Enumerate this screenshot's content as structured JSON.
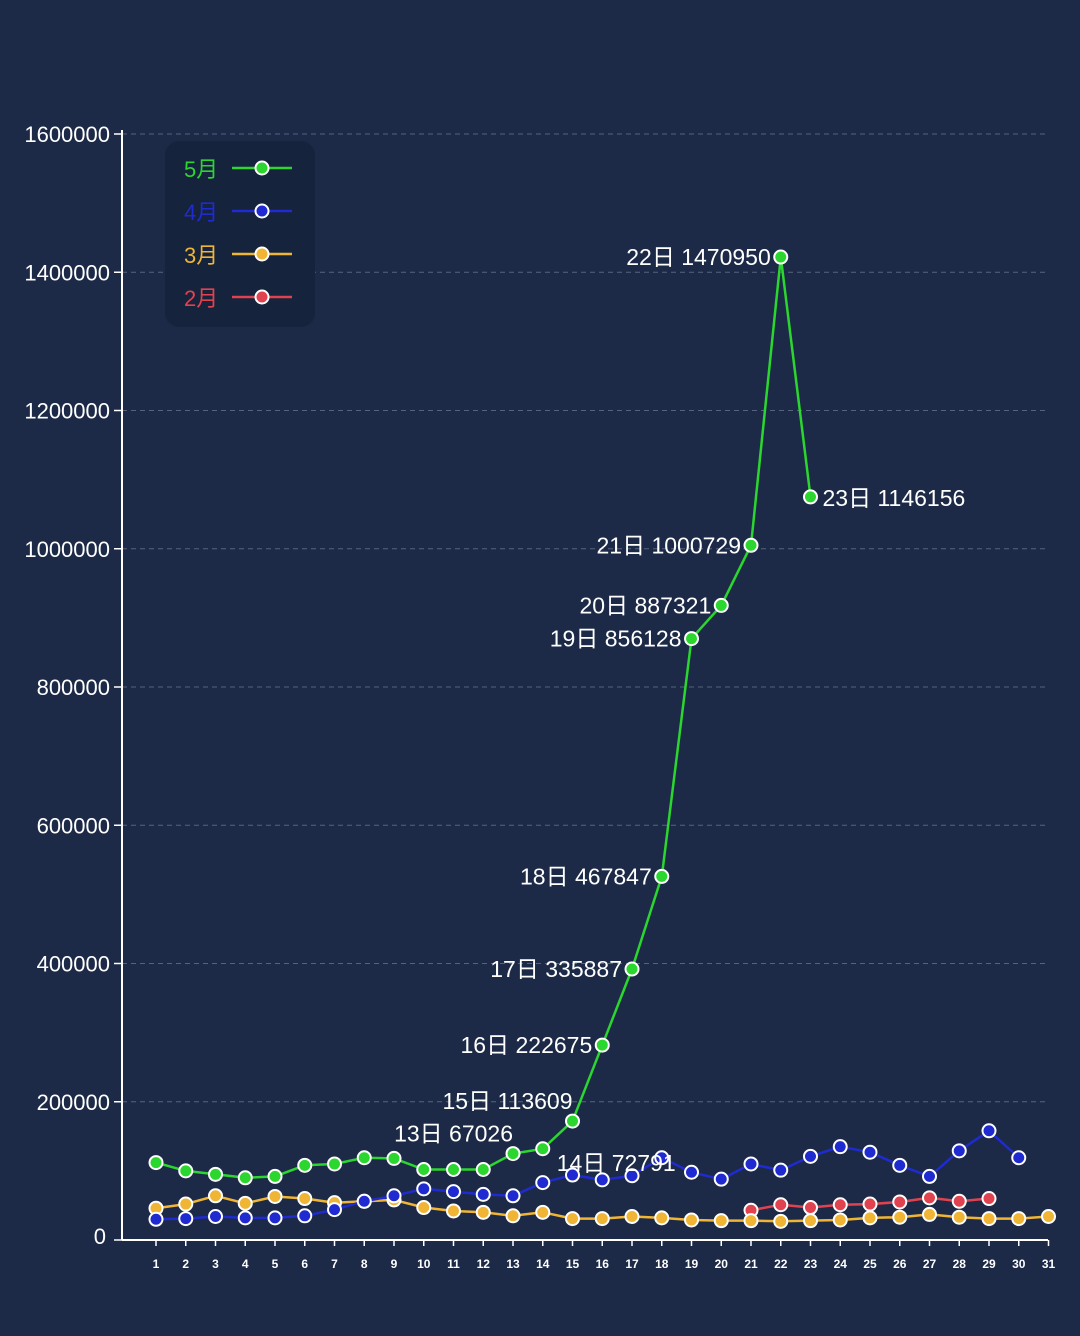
{
  "chart_data": {
    "type": "line",
    "title": "",
    "xlabel": "",
    "ylabel": "",
    "ylim": [
      0,
      1600000
    ],
    "yticks": [
      "0",
      "200000",
      "400000",
      "600000",
      "800000",
      "1000000",
      "1200000",
      "1400000",
      "1600000"
    ],
    "x": [
      1,
      2,
      3,
      4,
      5,
      6,
      7,
      8,
      9,
      10,
      11,
      12,
      13,
      14,
      15,
      16,
      17,
      18,
      19,
      20,
      21,
      22,
      23,
      24,
      25,
      26,
      27,
      28,
      29,
      30,
      31
    ],
    "grid": "horizontal-dashed",
    "legend_position": "top-left",
    "series": [
      {
        "name": "5月",
        "color": "#2bd62f",
        "x": [
          1,
          2,
          3,
          4,
          5,
          6,
          7,
          8,
          9,
          10,
          11,
          12,
          13,
          14,
          15,
          16,
          17,
          18,
          19,
          20,
          21,
          22,
          23
        ],
        "values": [
          112000,
          100000,
          95000,
          90000,
          92000,
          108000,
          110000,
          119000,
          118000,
          102000,
          102000,
          102000,
          125000,
          132000,
          172000,
          282000,
          392000,
          526000,
          870000,
          918000,
          1005000,
          1422000,
          1075000
        ]
      },
      {
        "name": "4月",
        "color": "#1f2bd1",
        "x": [
          1,
          2,
          3,
          4,
          5,
          6,
          7,
          8,
          9,
          10,
          11,
          12,
          13,
          14,
          15,
          16,
          17,
          18,
          19,
          20,
          21,
          22,
          23,
          24,
          25,
          26,
          27,
          28,
          29,
          30
        ],
        "values": [
          30000,
          31000,
          34000,
          32000,
          32000,
          35000,
          44000,
          56000,
          64000,
          74000,
          70000,
          66000,
          64000,
          83000,
          94000,
          87000,
          93000,
          119000,
          98000,
          88000,
          110000,
          101000,
          121000,
          135000,
          127000,
          108000,
          92000,
          129000,
          158000,
          119000
        ]
      },
      {
        "name": "3月",
        "color": "#f0b534",
        "x": [
          1,
          2,
          3,
          4,
          5,
          6,
          7,
          8,
          9,
          10,
          11,
          12,
          13,
          14,
          15,
          16,
          17,
          18,
          19,
          20,
          21,
          22,
          23,
          24,
          25,
          26,
          27,
          28,
          29,
          30,
          31
        ],
        "values": [
          46000,
          52000,
          64000,
          53000,
          63000,
          60000,
          54000,
          56000,
          58000,
          47000,
          42000,
          40000,
          35000,
          40000,
          31000,
          31000,
          34000,
          32000,
          29000,
          28000,
          28000,
          27000,
          28000,
          29000,
          32000,
          33000,
          37000,
          33000,
          31000,
          31000,
          34000
        ]
      },
      {
        "name": "2月",
        "color": "#e0434f",
        "x": [
          21,
          22,
          23,
          24,
          25,
          26,
          27,
          28,
          29
        ],
        "values": [
          43000,
          51000,
          47000,
          51000,
          52000,
          55000,
          61000,
          56000,
          60000
        ]
      }
    ],
    "annotations": [
      {
        "text": "13日  67026",
        "x": 13,
        "y": 125000,
        "position": "above-left"
      },
      {
        "text": "14日  72791",
        "x": 14,
        "y": 132000,
        "position": "below-right"
      },
      {
        "text": "15日  113609",
        "x": 15,
        "y": 172000,
        "position": "above-left"
      },
      {
        "text": "16日  222675",
        "x": 16,
        "y": 282000,
        "position": "left"
      },
      {
        "text": "17日  335887",
        "x": 17,
        "y": 392000,
        "position": "left"
      },
      {
        "text": "18日  467847",
        "x": 18,
        "y": 526000,
        "position": "left"
      },
      {
        "text": "19日  856128",
        "x": 19,
        "y": 870000,
        "position": "left"
      },
      {
        "text": "20日  887321",
        "x": 20,
        "y": 918000,
        "position": "left"
      },
      {
        "text": "21日  1000729",
        "x": 21,
        "y": 1005000,
        "position": "left"
      },
      {
        "text": "22日  1470950",
        "x": 22,
        "y": 1422000,
        "position": "left"
      },
      {
        "text": "23日  1146156",
        "x": 23,
        "y": 1075000,
        "position": "right"
      }
    ]
  },
  "colors": {
    "background": "#1c2a47",
    "legend_box": "#16233c",
    "axis": "#ffffff",
    "grid": "#56627e"
  }
}
